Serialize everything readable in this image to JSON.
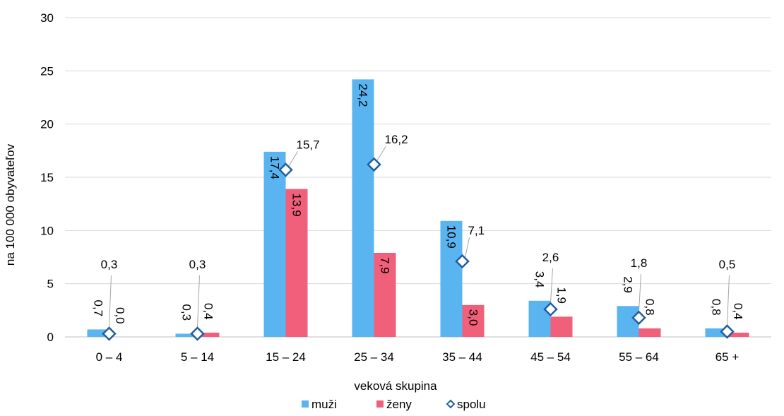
{
  "chart_data": {
    "type": "bar",
    "title": "",
    "xlabel": "veková skupina",
    "ylabel": "na 100 000 obyvateľov",
    "ylim": [
      0,
      30
    ],
    "yticks": [
      0,
      5,
      10,
      15,
      20,
      25,
      30
    ],
    "grid": true,
    "legend_position": "bottom",
    "categories": [
      "0 – 4",
      "5 – 14",
      "15 – 24",
      "25 – 34",
      "35 – 44",
      "45 – 54",
      "55 – 64",
      "65 +"
    ],
    "series": [
      {
        "name": "muži",
        "kind": "bar",
        "color": "#5AB4F0",
        "values": [
          0.7,
          0.3,
          17.4,
          24.2,
          10.9,
          3.4,
          2.9,
          0.8
        ],
        "labels": [
          "0,7",
          "0,3",
          "17,4",
          "24,2",
          "10,9",
          "3,4",
          "2,9",
          "0,8"
        ]
      },
      {
        "name": "ženy",
        "kind": "bar",
        "color": "#F0607A",
        "values": [
          0.0,
          0.4,
          13.9,
          7.9,
          3.0,
          1.9,
          0.8,
          0.4
        ],
        "labels": [
          "0,0",
          "0,4",
          "13,9",
          "7,9",
          "3,0",
          "1,9",
          "0,8",
          "0,4"
        ]
      },
      {
        "name": "spolu",
        "kind": "marker",
        "color": "#1F5FA0",
        "values": [
          0.3,
          0.3,
          15.7,
          16.2,
          7.1,
          2.6,
          1.8,
          0.5
        ],
        "labels": [
          "0,3",
          "0,3",
          "15,7",
          "16,2",
          "7,1",
          "2,6",
          "1,8",
          "0,5"
        ]
      }
    ]
  }
}
